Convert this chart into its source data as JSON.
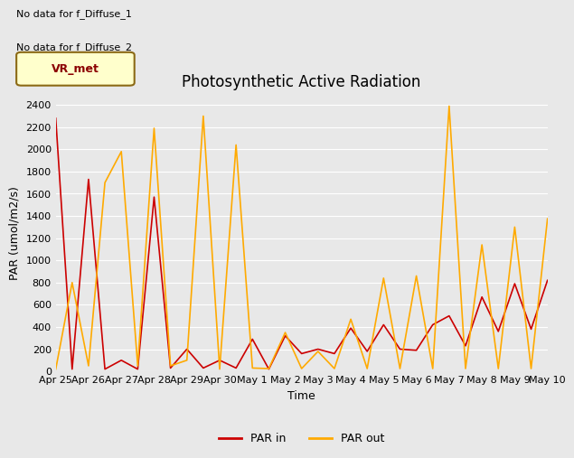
{
  "title": "Photosynthetic Active Radiation",
  "ylabel": "PAR (umol/m2/s)",
  "xlabel": "Time",
  "ax_bg_color": "#e8e8e8",
  "fig_bg_color": "#e8e8e8",
  "par_in_color": "#cc0000",
  "par_out_color": "#ffaa00",
  "ylim": [
    0,
    2500
  ],
  "yticks": [
    0,
    200,
    400,
    600,
    800,
    1000,
    1200,
    1400,
    1600,
    1800,
    2000,
    2200,
    2400
  ],
  "no_data_text1": "No data for f_Diffuse_1",
  "no_data_text2": "No data for f_Diffuse_2",
  "vr_met_label": "VR_met",
  "xtick_labels": [
    "Apr 25",
    "Apr 26",
    "Apr 27",
    "Apr 28",
    "Apr 29",
    "Apr 30",
    "May 1",
    "May 2",
    "May 3",
    "May 4",
    "May 5",
    "May 6",
    "May 7",
    "May 8",
    "May 9",
    "May 10"
  ],
  "par_in_x": [
    0,
    1,
    2,
    3,
    4,
    5,
    6,
    7,
    8,
    9,
    10,
    11,
    12,
    13,
    14,
    15,
    16,
    17,
    18,
    19,
    20,
    21,
    22,
    23,
    24,
    25,
    26,
    27,
    28,
    29,
    30
  ],
  "par_in_y": [
    2280,
    20,
    1730,
    20,
    100,
    20,
    1570,
    30,
    200,
    30,
    100,
    30,
    290,
    20,
    320,
    160,
    200,
    160,
    390,
    180,
    420,
    200,
    190,
    420,
    500,
    230,
    670,
    360,
    790,
    380,
    820
  ],
  "par_out_x": [
    0,
    1,
    2,
    3,
    4,
    5,
    6,
    7,
    8,
    9,
    10,
    11,
    12,
    13,
    14,
    15,
    16,
    17,
    18,
    19,
    20,
    21,
    22,
    23,
    24,
    25,
    26,
    27,
    28,
    29,
    30
  ],
  "par_out_y": [
    20,
    800,
    50,
    1700,
    1980,
    50,
    2190,
    50,
    100,
    2300,
    20,
    2040,
    30,
    25,
    350,
    25,
    180,
    25,
    470,
    25,
    840,
    25,
    860,
    25,
    2390,
    25,
    1140,
    25,
    1300,
    25,
    1375
  ],
  "title_fontsize": 12,
  "label_fontsize": 9,
  "tick_fontsize": 8,
  "legend_fontsize": 9,
  "linewidth": 1.2,
  "grid_color": "#ffffff",
  "vr_box_facecolor": "#ffffcc",
  "vr_box_edgecolor": "#8B6914",
  "vr_text_color": "#8B0000"
}
